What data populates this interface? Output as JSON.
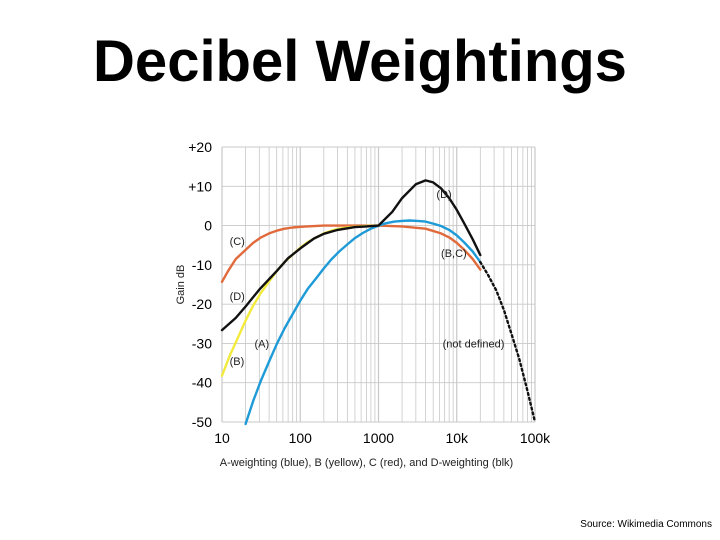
{
  "title": "Decibel Weightings",
  "source": "Source: Wikimedia Commons",
  "colors": {
    "A": "#1e9bd7",
    "B": "#f2ea3c",
    "C": "#e06a3b",
    "D": "#111111",
    "grid": "#c8c8c8"
  },
  "chart_data": {
    "type": "line",
    "xscale": "log",
    "xlim": [
      10,
      100000
    ],
    "ylim": [
      -50,
      20
    ],
    "xticks": [
      10,
      100,
      1000,
      10000,
      100000
    ],
    "xtick_labels": [
      "10",
      "100",
      "1000",
      "10k",
      "100k"
    ],
    "yticks": [
      20,
      10,
      0,
      -10,
      -20,
      -30,
      -40,
      -50
    ],
    "ytick_labels": [
      "+20",
      "+10",
      "0",
      "-10",
      "-20",
      "-30",
      "-40",
      "-50"
    ],
    "ylabel": "Gain dB",
    "xlabel": "A-weighting (blue), B (yellow), C (red), and D-weighting (blk)",
    "series": [
      {
        "name": "C",
        "color": "#e06a3b",
        "x": [
          10,
          12,
          15,
          20,
          25,
          31.5,
          40,
          50,
          63,
          80,
          100,
          200,
          500,
          1000,
          2000,
          4000,
          6300,
          8000,
          10000,
          12500,
          16000,
          20000
        ],
        "y": [
          -14.3,
          -11.5,
          -8.5,
          -6.2,
          -4.4,
          -3.0,
          -2.0,
          -1.3,
          -0.8,
          -0.5,
          -0.3,
          0,
          0,
          0,
          -0.2,
          -0.8,
          -2.0,
          -3.0,
          -4.4,
          -6.2,
          -8.5,
          -11.2
        ]
      },
      {
        "name": "B",
        "color": "#f2ea3c",
        "x": [
          10,
          12.5,
          16,
          20,
          25,
          31.5,
          40,
          50,
          63,
          80,
          100,
          125,
          160,
          200,
          250,
          315,
          400,
          500,
          700,
          1000
        ],
        "y": [
          -38.2,
          -33.2,
          -28.5,
          -24.2,
          -20.4,
          -17.1,
          -14.2,
          -11.6,
          -9.3,
          -7.4,
          -5.6,
          -4.2,
          -3.0,
          -2.0,
          -1.3,
          -0.8,
          -0.5,
          -0.3,
          -0.1,
          0
        ]
      },
      {
        "name": "A",
        "color": "#1e9bd7",
        "x": [
          20,
          25,
          31.5,
          40,
          50,
          63,
          80,
          100,
          125,
          160,
          200,
          250,
          315,
          400,
          500,
          630,
          800,
          1000,
          1250,
          1600,
          2000,
          2500,
          3150,
          4000,
          5000,
          6300,
          8000,
          10000,
          12500,
          16000,
          20000
        ],
        "y": [
          -50.5,
          -44.7,
          -39.4,
          -34.6,
          -30.2,
          -26.2,
          -22.5,
          -19.1,
          -16.1,
          -13.4,
          -10.9,
          -8.6,
          -6.6,
          -4.8,
          -3.2,
          -1.9,
          -0.8,
          0,
          0.6,
          1.0,
          1.2,
          1.3,
          1.2,
          1.0,
          0.5,
          -0.1,
          -1.1,
          -2.5,
          -4.3,
          -6.6,
          -9.3
        ]
      },
      {
        "name": "D",
        "color": "#111111",
        "x": [
          10,
          15,
          20,
          30,
          50,
          70,
          100,
          150,
          200,
          300,
          500,
          700,
          1000,
          1500,
          2000,
          3000,
          4000,
          5000,
          6300,
          8000,
          10000,
          12500,
          16000,
          20000
        ],
        "y": [
          -26.6,
          -23.5,
          -20.6,
          -16.3,
          -11.6,
          -8.3,
          -5.8,
          -3.3,
          -2.1,
          -1.1,
          -0.4,
          -0.2,
          0,
          3.5,
          7.0,
          10.5,
          11.5,
          11.0,
          9.5,
          7.0,
          4.0,
          0.5,
          -3.5,
          -7.5
        ]
      },
      {
        "name": "not defined",
        "color": "#111111",
        "dashed": true,
        "x": [
          20000,
          25000,
          32000,
          40000,
          50000,
          63000,
          80000,
          100000
        ],
        "y": [
          -9.3,
          -12.5,
          -16.5,
          -21.5,
          -27.5,
          -34.0,
          -42.0,
          -50.0
        ]
      }
    ],
    "annotations": [
      {
        "text": "(D)",
        "x": 5500,
        "y": 7
      },
      {
        "text": "(B,C)",
        "x": 6300,
        "y": -8
      },
      {
        "text": "(C)",
        "x": 12.5,
        "y": -5
      },
      {
        "text": "(D)",
        "x": 12.5,
        "y": -19
      },
      {
        "text": "(A)",
        "x": 26,
        "y": -31
      },
      {
        "text": "(B)",
        "x": 12.5,
        "y": -35.5
      },
      {
        "text": "(not defined)",
        "x": 6600,
        "y": -31
      }
    ]
  }
}
